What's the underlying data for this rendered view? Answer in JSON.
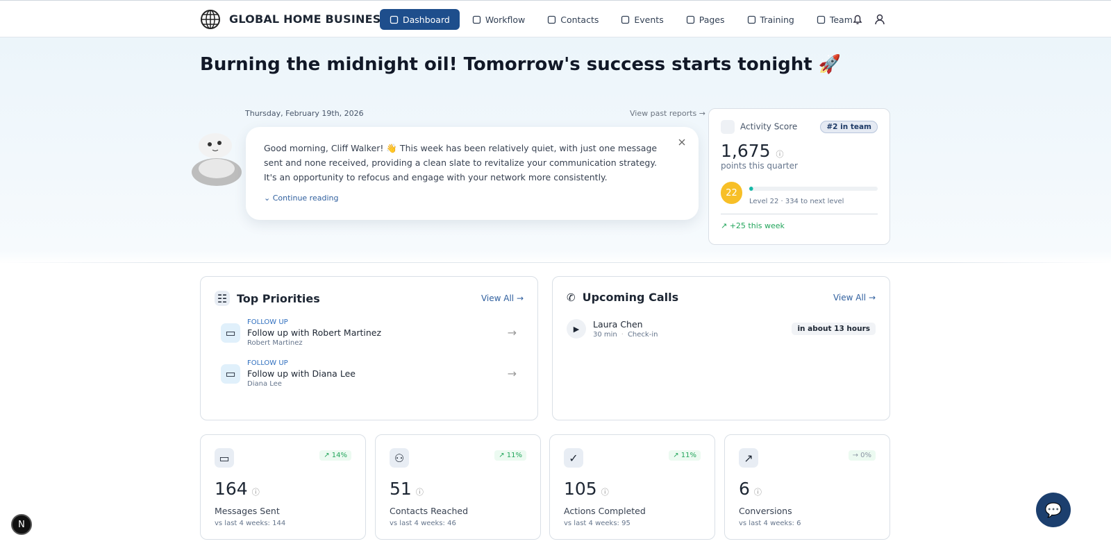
{
  "nav": {
    "brand": "GLOBAL HOME BUSINESS",
    "items": [
      "Dashboard",
      "Workflow",
      "Contacts",
      "Events",
      "Pages",
      "Training",
      "Team"
    ]
  },
  "headline": "Burning the midnight oil! Tomorrow's success starts tonight 🚀",
  "report": {
    "date": "Thursday, February 19th, 2026",
    "past_link": "View past reports",
    "message": "Good morning, Cliff Walker! 👋 This week has been relatively quiet, with just one message sent and none received, providing a clean slate to revitalize your communication strategy. It's an opportunity to refocus and engage with your network more consistently.",
    "continue": "Continue reading"
  },
  "activity": {
    "title": "Activity Score",
    "rank": "#2 in team",
    "score": "1,675",
    "score_caption": "points this quarter",
    "level": 22,
    "level_caption": "Level 22 · 334 to next level",
    "progress": 3,
    "week": "+25 this week"
  },
  "priorities": {
    "title": "Top Priorities",
    "view_all": "View All",
    "items": [
      {
        "tag": "FOLLOW UP",
        "title": "Follow up with Robert Martinez",
        "person": "Robert Martinez"
      },
      {
        "tag": "FOLLOW UP",
        "title": "Follow up with Diana Lee",
        "person": "Diana Lee"
      }
    ]
  },
  "calls": {
    "title": "Upcoming Calls",
    "view_all": "View All",
    "items": [
      {
        "name": "Laura Chen",
        "duration": "30 min",
        "kind": "Check-in",
        "when": "in about 13 hours"
      }
    ]
  },
  "stats": [
    {
      "value": 164,
      "label": "Messages Sent",
      "change": "↗ 14%",
      "change_color": "#22a55b",
      "compare": "vs last 4 weeks: 144"
    },
    {
      "value": 51,
      "label": "Contacts Reached",
      "change": "↗ 11%",
      "change_color": "#22a55b",
      "compare": "vs last 4 weeks: 46"
    },
    {
      "value": 105,
      "label": "Actions Completed",
      "change": "↗ 11%",
      "change_color": "#22a55b",
      "compare": "vs last 4 weeks: 95"
    },
    {
      "value": 6,
      "label": "Conversions",
      "change": "→ 0%",
      "change_color": "#8a94a3",
      "compare": "vs last 4 weeks: 6"
    }
  ]
}
